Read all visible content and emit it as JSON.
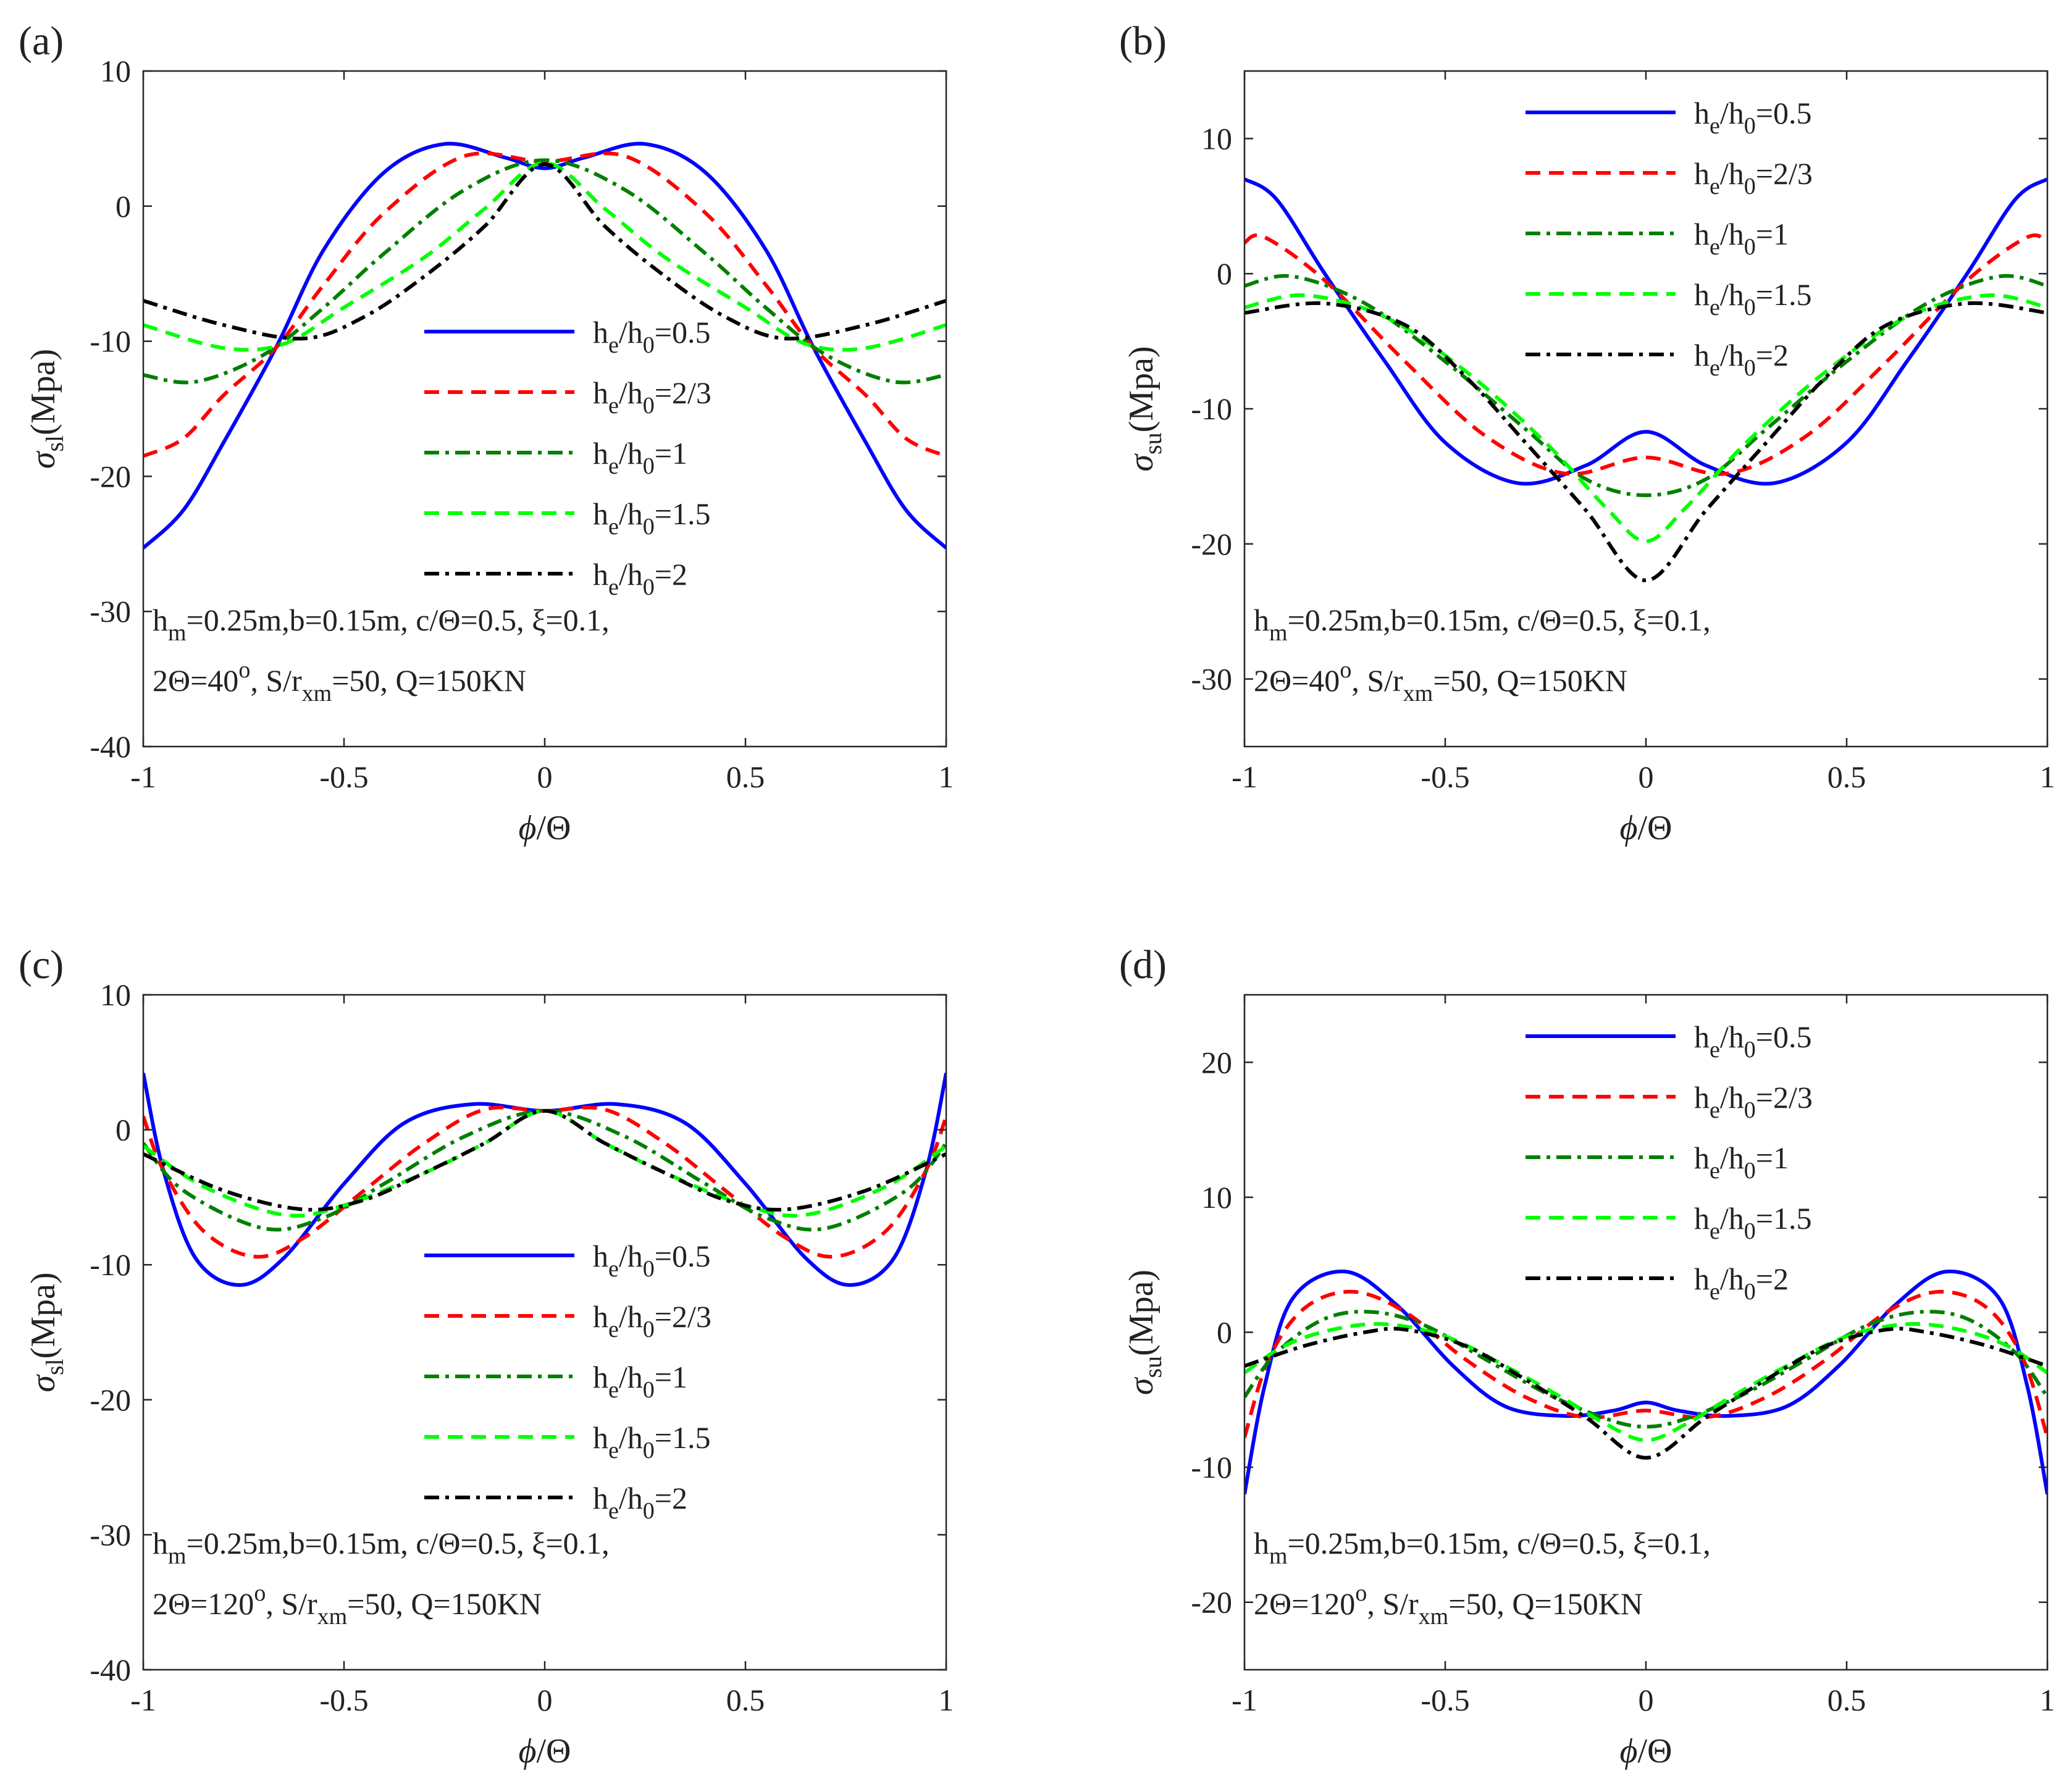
{
  "panels": [
    {
      "label": "(a)",
      "xlabel": {
        "sym": "ϕ",
        "rest": "/Θ"
      },
      "ylabel": {
        "sym": "σ",
        "sub": "sl",
        "rest": "(Mpa)"
      },
      "xlim": [
        -1,
        1
      ],
      "ylim": [
        -40,
        10
      ],
      "xticks": [
        "-1",
        "-0.5",
        "0",
        "0.5",
        "1"
      ],
      "yticks": [
        "10",
        "0",
        "-10",
        "-20",
        "-30",
        "-40"
      ],
      "ytick_values": [
        10,
        0,
        -10,
        -20,
        -30,
        -40
      ],
      "legend_pos": "center",
      "annotation": {
        "line1": {
          "p1": "h",
          "s1": "m",
          "p2": "=0.25m,b=0.15m, c/Θ=0.5, ξ=0.1,"
        },
        "line2": {
          "p1": "2Θ=40",
          "sup": "o",
          "p2": ", S/r",
          "s2": "xm",
          "p3": "=50, Q=150KN"
        }
      }
    },
    {
      "label": "(b)",
      "xlabel": {
        "sym": "ϕ",
        "rest": "/Θ"
      },
      "ylabel": {
        "sym": "σ",
        "sub": "su",
        "rest": "(Mpa)"
      },
      "xlim": [
        -1,
        1
      ],
      "ylim": [
        -35,
        15
      ],
      "xticks": [
        "-1",
        "-0.5",
        "0",
        "0.5",
        "1"
      ],
      "yticks": [
        "10",
        "0",
        "-10",
        "-20",
        "-30"
      ],
      "ytick_values": [
        10,
        0,
        -10,
        -20,
        -30
      ],
      "legend_pos": "top",
      "annotation": {
        "line1": {
          "p1": "h",
          "s1": "m",
          "p2": "=0.25m,b=0.15m, c/Θ=0.5, ξ=0.1,"
        },
        "line2": {
          "p1": "2Θ=40",
          "sup": "o",
          "p2": ", S/r",
          "s2": "xm",
          "p3": "=50, Q=150KN"
        }
      }
    },
    {
      "label": "(c)",
      "xlabel": {
        "sym": "ϕ",
        "rest": "/Θ"
      },
      "ylabel": {
        "sym": "σ",
        "sub": "sl",
        "rest": "(Mpa)"
      },
      "xlim": [
        -1,
        1
      ],
      "ylim": [
        -40,
        10
      ],
      "xticks": [
        "-1",
        "-0.5",
        "0",
        "0.5",
        "1"
      ],
      "yticks": [
        "10",
        "0",
        "-10",
        "-20",
        "-30",
        "-40"
      ],
      "ytick_values": [
        10,
        0,
        -10,
        -20,
        -30,
        -40
      ],
      "legend_pos": "center",
      "annotation": {
        "line1": {
          "p1": "h",
          "s1": "m",
          "p2": "=0.25m,b=0.15m, c/Θ=0.5, ξ=0.1,"
        },
        "line2": {
          "p1": "2Θ=120",
          "sup": "o",
          "p2": ", S/r",
          "s2": "xm",
          "p3": "=50, Q=150KN"
        }
      }
    },
    {
      "label": "(d)",
      "xlabel": {
        "sym": "ϕ",
        "rest": "/Θ"
      },
      "ylabel": {
        "sym": "σ",
        "sub": "su",
        "rest": "(Mpa)"
      },
      "xlim": [
        -1,
        1
      ],
      "ylim": [
        -25,
        25
      ],
      "xticks": [
        "-1",
        "-0.5",
        "0",
        "0.5",
        "1"
      ],
      "yticks": [
        "20",
        "10",
        "0",
        "-10",
        "-20"
      ],
      "ytick_values": [
        20,
        10,
        0,
        -10,
        -20
      ],
      "legend_pos": "top",
      "annotation": {
        "line1": {
          "p1": "h",
          "s1": "m",
          "p2": "=0.25m,b=0.15m, c/Θ=0.5, ξ=0.1,"
        },
        "line2": {
          "p1": "2Θ=120",
          "sup": "o",
          "p2": ", S/r",
          "s2": "xm",
          "p3": "=50, Q=150KN"
        }
      }
    }
  ],
  "legend": [
    {
      "he": "h",
      "e": "e",
      "mid": "/h",
      "zero": "0",
      "val": "=0.5",
      "color": "#0000ff",
      "dash": "solid"
    },
    {
      "he": "h",
      "e": "e",
      "mid": "/h",
      "zero": "0",
      "val": "=2/3",
      "color": "#ff0000",
      "dash": "dash"
    },
    {
      "he": "h",
      "e": "e",
      "mid": "/h",
      "zero": "0",
      "val": "=1",
      "color": "#007f00",
      "dash": "dashdot"
    },
    {
      "he": "h",
      "e": "e",
      "mid": "/h",
      "zero": "0",
      "val": "=1.5",
      "color": "#00ff00",
      "dash": "dash"
    },
    {
      "he": "h",
      "e": "e",
      "mid": "/h",
      "zero": "0",
      "val": "=2",
      "color": "#000000",
      "dash": "dashdot"
    }
  ],
  "chart_data": [
    {
      "type": "line",
      "panel": "(a)",
      "title": "",
      "xlabel": "ϕ/Θ",
      "ylabel": "σsl(Mpa)",
      "xlim": [
        -1,
        1
      ],
      "ylim": [
        -40,
        10
      ],
      "grid": false,
      "series": [
        {
          "name": "he/h0=0.5",
          "x": [
            -1,
            -0.9,
            -0.8,
            -0.67,
            -0.55,
            -0.4,
            -0.25,
            -0.1,
            0,
            0.1,
            0.25,
            0.4,
            0.55,
            0.67,
            0.8,
            0.9,
            1
          ],
          "values": [
            -25.3,
            -22.5,
            -17.5,
            -10.5,
            -3.2,
            2.5,
            4.6,
            3.6,
            2.8,
            3.6,
            4.6,
            2.5,
            -3.2,
            -10.5,
            -17.5,
            -22.5,
            -25.3
          ]
        },
        {
          "name": "he/h0=2/3",
          "x": [
            -1,
            -0.9,
            -0.8,
            -0.67,
            -0.55,
            -0.4,
            -0.2,
            0,
            0.2,
            0.4,
            0.55,
            0.67,
            0.8,
            0.9,
            1
          ],
          "values": [
            -18.5,
            -17.2,
            -14,
            -10.5,
            -5.8,
            -0.5,
            3.7,
            3.3,
            3.7,
            -0.5,
            -5.8,
            -10.5,
            -14,
            -17.2,
            -18.5
          ]
        },
        {
          "name": "he/h0=1",
          "x": [
            -1,
            -0.87,
            -0.7,
            -0.55,
            -0.4,
            -0.2,
            0,
            0.2,
            0.4,
            0.55,
            0.7,
            0.87,
            1
          ],
          "values": [
            -12.5,
            -13,
            -11,
            -7.5,
            -3.5,
            1.2,
            3.4,
            1.2,
            -3.5,
            -7.5,
            -11,
            -13,
            -12.5
          ]
        },
        {
          "name": "he/h0=1.5",
          "x": [
            -1,
            -0.8,
            -0.65,
            -0.5,
            -0.3,
            -0.15,
            0,
            0.15,
            0.3,
            0.5,
            0.65,
            0.8,
            1
          ],
          "values": [
            -8.8,
            -10.5,
            -10.2,
            -7.5,
            -3.8,
            -0.2,
            3.2,
            -0.2,
            -3.8,
            -7.5,
            -10.2,
            -10.5,
            -8.8
          ]
        },
        {
          "name": "he/h0=2",
          "x": [
            -1,
            -0.8,
            -0.6,
            -0.45,
            -0.3,
            -0.15,
            0,
            0.15,
            0.3,
            0.45,
            0.6,
            0.8,
            1
          ],
          "values": [
            -7,
            -8.8,
            -9.8,
            -8.2,
            -5.2,
            -1.5,
            3.1,
            -1.5,
            -5.2,
            -8.2,
            -9.8,
            -8.8,
            -7
          ]
        }
      ]
    },
    {
      "type": "line",
      "panel": "(b)",
      "title": "",
      "xlabel": "ϕ/Θ",
      "ylabel": "σsu(Mpa)",
      "xlim": [
        -1,
        1
      ],
      "ylim": [
        -35,
        15
      ],
      "grid": false,
      "series": [
        {
          "name": "he/h0=0.5",
          "x": [
            -1,
            -0.92,
            -0.8,
            -0.65,
            -0.5,
            -0.32,
            -0.15,
            0,
            0.15,
            0.32,
            0.5,
            0.65,
            0.8,
            0.92,
            1
          ],
          "values": [
            7,
            5.5,
            0,
            -6.5,
            -12.5,
            -15.5,
            -14.2,
            -11.7,
            -14.2,
            -15.5,
            -12.5,
            -6.5,
            0,
            5.5,
            7
          ]
        },
        {
          "name": "he/h0=2/3",
          "x": [
            -1,
            -0.95,
            -0.8,
            -0.6,
            -0.4,
            -0.2,
            0,
            0.2,
            0.4,
            0.6,
            0.8,
            0.95,
            1
          ],
          "values": [
            2.3,
            2.7,
            -0.5,
            -6.5,
            -12,
            -14.8,
            -13.6,
            -14.8,
            -12,
            -6.5,
            -0.5,
            2.7,
            2.3
          ]
        },
        {
          "name": "he/h0=1",
          "x": [
            -1,
            -0.88,
            -0.7,
            -0.5,
            -0.3,
            -0.15,
            0,
            0.15,
            0.3,
            0.5,
            0.7,
            0.88,
            1
          ],
          "values": [
            -0.9,
            -0.2,
            -2.2,
            -6.5,
            -11.5,
            -15.2,
            -16.4,
            -15.2,
            -11.5,
            -6.5,
            -2.2,
            -0.2,
            -0.9
          ]
        },
        {
          "name": "he/h0=1.5",
          "x": [
            -1,
            -0.85,
            -0.65,
            -0.45,
            -0.25,
            -0.1,
            0,
            0.1,
            0.25,
            0.45,
            0.65,
            0.85,
            1
          ],
          "values": [
            -2.5,
            -1.6,
            -3.2,
            -7.2,
            -12.5,
            -17.3,
            -19.8,
            -17.3,
            -12.5,
            -7.2,
            -3.2,
            -1.6,
            -2.5
          ]
        },
        {
          "name": "he/h0=2",
          "x": [
            -1,
            -0.8,
            -0.6,
            -0.45,
            -0.3,
            -0.15,
            0,
            0.15,
            0.3,
            0.45,
            0.6,
            0.8,
            1
          ],
          "values": [
            -2.9,
            -2.2,
            -3.8,
            -7.6,
            -12.5,
            -17.5,
            -22.7,
            -17.5,
            -12.5,
            -7.6,
            -3.8,
            -2.2,
            -2.9
          ]
        }
      ]
    },
    {
      "type": "line",
      "panel": "(c)",
      "title": "",
      "xlabel": "ϕ/Θ",
      "ylabel": "σsl(Mpa)",
      "xlim": [
        -1,
        1
      ],
      "ylim": [
        -40,
        10
      ],
      "grid": false,
      "series": [
        {
          "name": "he/h0=0.5",
          "x": [
            -1,
            -0.95,
            -0.87,
            -0.76,
            -0.65,
            -0.5,
            -0.35,
            -0.18,
            0,
            0.18,
            0.35,
            0.5,
            0.65,
            0.76,
            0.87,
            0.95,
            1
          ],
          "values": [
            4.2,
            -3,
            -9.5,
            -11.5,
            -9.5,
            -4,
            0.5,
            1.9,
            1.4,
            1.9,
            0.5,
            -4,
            -9.5,
            -11.5,
            -9.5,
            -3,
            4.2
          ]
        },
        {
          "name": "he/h0=2/3",
          "x": [
            -1,
            -0.95,
            -0.85,
            -0.72,
            -0.6,
            -0.45,
            -0.3,
            -0.15,
            0,
            0.15,
            0.3,
            0.45,
            0.6,
            0.72,
            0.85,
            0.95,
            1
          ],
          "values": [
            1,
            -3,
            -7.5,
            -9.4,
            -8,
            -4.5,
            -1,
            1.5,
            1.4,
            1.5,
            -1,
            -4.5,
            -8,
            -9.4,
            -7.5,
            -3,
            1
          ]
        },
        {
          "name": "he/h0=1",
          "x": [
            -1,
            -0.9,
            -0.7,
            -0.55,
            -0.4,
            -0.2,
            0,
            0.2,
            0.4,
            0.55,
            0.7,
            0.9,
            1
          ],
          "values": [
            -1,
            -4.5,
            -7.3,
            -6.5,
            -4,
            -0.5,
            1.4,
            -0.5,
            -4,
            -6.5,
            -7.3,
            -4.5,
            -1
          ]
        },
        {
          "name": "he/h0=1.5",
          "x": [
            -1,
            -0.85,
            -0.65,
            -0.5,
            -0.3,
            -0.15,
            0,
            0.15,
            0.3,
            0.5,
            0.65,
            0.85,
            1
          ],
          "values": [
            -1.2,
            -4.2,
            -6.3,
            -5.6,
            -3.2,
            -1,
            1.4,
            -1,
            -3.2,
            -5.6,
            -6.3,
            -4.2,
            -1.2
          ]
        },
        {
          "name": "he/h0=2",
          "x": [
            -1,
            -0.8,
            -0.6,
            -0.45,
            -0.3,
            -0.15,
            0,
            0.15,
            0.3,
            0.45,
            0.6,
            0.8,
            1
          ],
          "values": [
            -1.8,
            -4.5,
            -5.9,
            -5.2,
            -3.2,
            -1,
            1.4,
            -1,
            -3.2,
            -5.2,
            -5.9,
            -4.5,
            -1.8
          ]
        }
      ]
    },
    {
      "type": "line",
      "panel": "(d)",
      "title": "",
      "xlabel": "ϕ/Θ",
      "ylabel": "σsu(Mpa)",
      "xlim": [
        -1,
        1
      ],
      "ylim": [
        -25,
        25
      ],
      "grid": false,
      "series": [
        {
          "name": "he/h0=0.5",
          "x": [
            -1,
            -0.95,
            -0.88,
            -0.75,
            -0.62,
            -0.48,
            -0.35,
            -0.2,
            -0.08,
            0,
            0.08,
            0.2,
            0.35,
            0.48,
            0.62,
            0.75,
            0.88,
            0.95,
            1
          ],
          "values": [
            -12,
            -4,
            2.5,
            4.5,
            2,
            -2.5,
            -5.5,
            -6.2,
            -5.8,
            -5.2,
            -5.8,
            -6.2,
            -5.5,
            -2.5,
            2,
            4.5,
            2.5,
            -4,
            -12
          ]
        },
        {
          "name": "he/h0=2/3",
          "x": [
            -1,
            -0.94,
            -0.85,
            -0.73,
            -0.6,
            -0.45,
            -0.3,
            -0.15,
            0,
            0.15,
            0.3,
            0.45,
            0.6,
            0.73,
            0.85,
            0.94,
            1
          ],
          "values": [
            -7.8,
            -2,
            1.8,
            3,
            1.5,
            -2,
            -4.8,
            -6.3,
            -5.8,
            -6.3,
            -4.8,
            -2,
            1.5,
            3,
            1.8,
            -2,
            -7.8
          ]
        },
        {
          "name": "he/h0=1",
          "x": [
            -1,
            -0.92,
            -0.8,
            -0.68,
            -0.55,
            -0.4,
            -0.25,
            -0.1,
            0,
            0.1,
            0.25,
            0.4,
            0.55,
            0.68,
            0.8,
            0.92,
            1
          ],
          "values": [
            -4.8,
            -1.5,
            1,
            1.5,
            0.5,
            -2,
            -4.5,
            -6.4,
            -7,
            -6.4,
            -4.5,
            -2,
            0.5,
            1.5,
            1,
            -1.5,
            -4.8
          ]
        },
        {
          "name": "he/h0=1.5",
          "x": [
            -1,
            -0.9,
            -0.78,
            -0.65,
            -0.5,
            -0.35,
            -0.2,
            -0.1,
            0,
            0.1,
            0.2,
            0.35,
            0.5,
            0.65,
            0.78,
            0.9,
            1
          ],
          "values": [
            -3,
            -1,
            0.2,
            0.6,
            -0.3,
            -2.5,
            -5,
            -6.8,
            -8,
            -6.8,
            -5,
            -2.5,
            -0.3,
            0.6,
            0.2,
            -1,
            -3
          ]
        },
        {
          "name": "he/h0=2",
          "x": [
            -1,
            -0.85,
            -0.7,
            -0.6,
            -0.45,
            -0.3,
            -0.15,
            0,
            0.15,
            0.3,
            0.45,
            0.6,
            0.7,
            0.85,
            1
          ],
          "values": [
            -2.5,
            -1,
            0,
            0.2,
            -1,
            -3.5,
            -6.3,
            -9.3,
            -6.3,
            -3.5,
            -1,
            0.2,
            0,
            -1,
            -2.5
          ]
        }
      ]
    }
  ]
}
